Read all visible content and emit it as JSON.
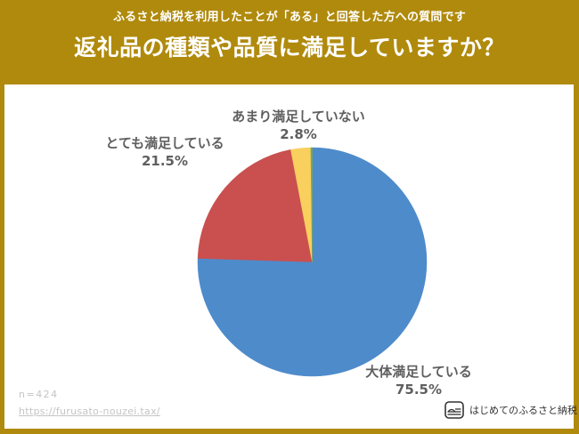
{
  "header": {
    "subtitle": "ふるさと納税を利用したことが「ある」と回答した方への質問です",
    "title": "返礼品の種類や品質に満足していますか？"
  },
  "colors": {
    "background": "#b08a0c",
    "panel": "#ffffff",
    "label_text": "#5f5f5f"
  },
  "chart_data": {
    "type": "pie",
    "title": "返礼品の種類や品質に満足していますか？",
    "start_angle": "12 o'clock, clockwise",
    "categories": [
      "大体満足している",
      "とても満足している",
      "あまり満足していない",
      ""
    ],
    "values": [
      75.5,
      21.5,
      2.8,
      0.2
    ],
    "colors": [
      "#4e8bcb",
      "#c9504f",
      "#f9cf5e",
      "#7aab4b"
    ],
    "labels": [
      {
        "name": "大体満足している",
        "percent": "75.5%"
      },
      {
        "name": "とても満足している",
        "percent": "21.5%"
      },
      {
        "name": "あまり満足していない",
        "percent": "2.8%"
      }
    ],
    "legend": "none (data labels outside slices)"
  },
  "footer": {
    "sample_size": "n=424",
    "url": "https://furusato-nouzei.tax/",
    "brand": "はじめてのふるさと納税"
  }
}
